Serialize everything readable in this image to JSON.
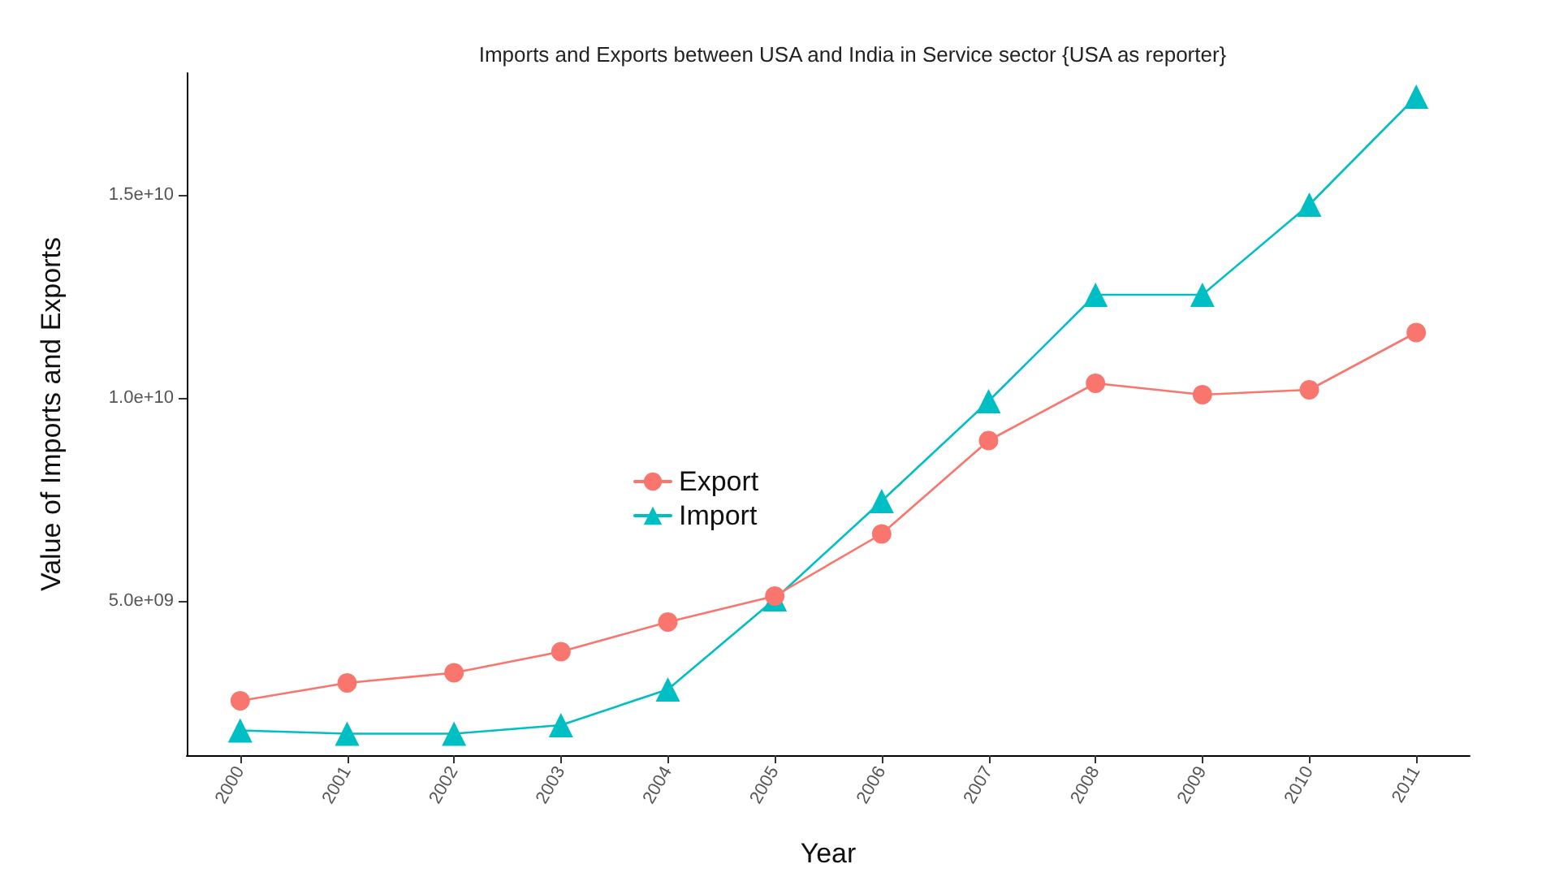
{
  "chart_data": {
    "type": "line",
    "title": "Imports and Exports between USA and India in Service sector {USA as reporter}",
    "xlabel": "Year",
    "ylabel": "Value of Imports and Exports",
    "categories": [
      "2000",
      "2001",
      "2002",
      "2003",
      "2004",
      "2005",
      "2006",
      "2007",
      "2008",
      "2009",
      "2010",
      "2011"
    ],
    "series": [
      {
        "name": "Export",
        "color": "#f8766d",
        "marker": "circle",
        "values": [
          2540000000.0,
          2980000000.0,
          3230000000.0,
          3750000000.0,
          4480000000.0,
          5120000000.0,
          6650000000.0,
          8950000000.0,
          10360000000.0,
          10080000000.0,
          10200000000.0,
          11610000000.0
        ]
      },
      {
        "name": "Import",
        "color": "#00bfc4",
        "marker": "triangle",
        "values": [
          1810000000.0,
          1730000000.0,
          1730000000.0,
          1940000000.0,
          2820000000.0,
          5040000000.0,
          7460000000.0,
          9920000000.0,
          12540000000.0,
          12540000000.0,
          14760000000.0,
          17420000000.0
        ]
      }
    ],
    "ylim": [
      1200000000.0,
      18000000000.0
    ],
    "yticks": [
      {
        "value": 5000000000.0,
        "label": "5.0e+09"
      },
      {
        "value": 10000000000.0,
        "label": "1.0e+10"
      },
      {
        "value": 15000000000.0,
        "label": "1.5e+10"
      }
    ],
    "grid": false,
    "legend": "center left",
    "line_style": "solid"
  }
}
